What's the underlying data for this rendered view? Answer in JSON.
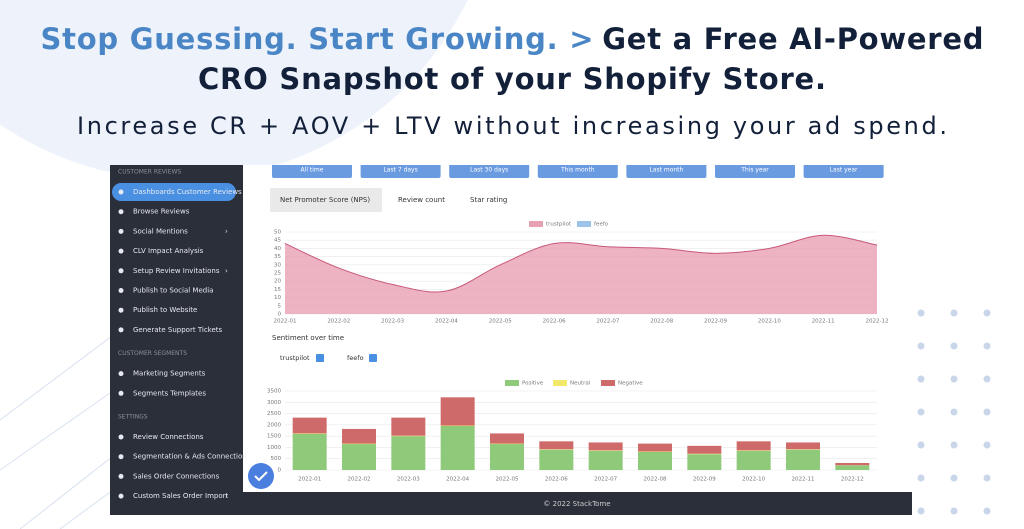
{
  "banner": {
    "headline_accent": "Stop Guessing. Start Growing. >",
    "headline_rest": "Get a Free AI-Powered",
    "headline_line2": "CRO Snapshot of your Shopify Store.",
    "subheadline": "Increase CR + AOV + LTV without increasing your ad spend."
  },
  "app": {
    "sidebar": [
      {
        "section": "CUSTOMER REVIEWS",
        "items": [
          {
            "label": "Dashboards Customer Reviews",
            "active": true
          },
          {
            "label": "Browse Reviews"
          },
          {
            "label": "Social Mentions",
            "submenu": true
          },
          {
            "label": "CLV Impact Analysis"
          },
          {
            "label": "Setup Review Invitations",
            "submenu": true
          },
          {
            "label": "Publish to Social Media"
          },
          {
            "label": "Publish to Website"
          },
          {
            "label": "Generate Support Tickets"
          }
        ]
      },
      {
        "section": "CUSTOMER SEGMENTS",
        "items": [
          {
            "label": "Marketing Segments"
          },
          {
            "label": "Segments Templates"
          }
        ]
      },
      {
        "section": "SETTINGS",
        "items": [
          {
            "label": "Review Connections"
          },
          {
            "label": "Segmentation & Ads Connection"
          },
          {
            "label": "Sales Order Connections"
          },
          {
            "label": "Custom Sales Order Import",
            "submenu": true
          }
        ]
      }
    ],
    "date_filters": [
      "All time",
      "Last 7 days",
      "Last 30 days",
      "This month",
      "Last month",
      "This year",
      "Last year"
    ],
    "tabs": [
      "Net Promoter Score (NPS)",
      "Review count",
      "Star rating"
    ],
    "footer": "© 2022 StackTome"
  },
  "chart_data": [
    {
      "type": "line",
      "categories": [
        "2022-01",
        "2022-02",
        "2022-03",
        "2022-04",
        "2022-05",
        "2022-06",
        "2022-07",
        "2022-08",
        "2022-09",
        "2022-10",
        "2022-11",
        "2022-12"
      ],
      "series": [
        {
          "name": "trustpilot",
          "color": "#e8a0b4",
          "values": [
            43,
            28,
            18,
            14,
            30,
            43,
            41,
            40,
            37,
            40,
            48,
            42
          ]
        },
        {
          "name": "feefo",
          "color": "#9cc3ea",
          "values": [
            null,
            null,
            null,
            null,
            null,
            null,
            null,
            null,
            null,
            null,
            null,
            null
          ]
        }
      ],
      "ylim": [
        0,
        50
      ],
      "yticks": [
        0,
        5,
        10,
        15,
        20,
        25,
        30,
        35,
        40,
        45,
        50
      ],
      "grid": true
    },
    {
      "type": "bar",
      "stacked": true,
      "title": "Sentiment over time",
      "filters": [
        "trustpilot",
        "feefo"
      ],
      "categories": [
        "2022-01",
        "2022-02",
        "2022-03",
        "2022-04",
        "2022-05",
        "2022-06",
        "2022-07",
        "2022-08",
        "2022-09",
        "2022-10",
        "2022-11",
        "2022-12"
      ],
      "series": [
        {
          "name": "Positive",
          "color": "#8fc97a",
          "values": [
            1600,
            1150,
            1500,
            1950,
            1150,
            900,
            850,
            800,
            700,
            850,
            900,
            200
          ]
        },
        {
          "name": "Neutral",
          "color": "#f2e86a",
          "values": [
            20,
            20,
            20,
            20,
            20,
            20,
            20,
            20,
            20,
            20,
            20,
            10
          ]
        },
        {
          "name": "Negative",
          "color": "#cf6a6a",
          "values": [
            700,
            650,
            800,
            1250,
            450,
            350,
            350,
            350,
            350,
            400,
            300,
            100
          ]
        }
      ],
      "ylim": [
        0,
        3500
      ],
      "yticks": [
        0,
        500,
        1000,
        1500,
        2000,
        2500,
        3000,
        3500
      ],
      "grid": true
    }
  ]
}
